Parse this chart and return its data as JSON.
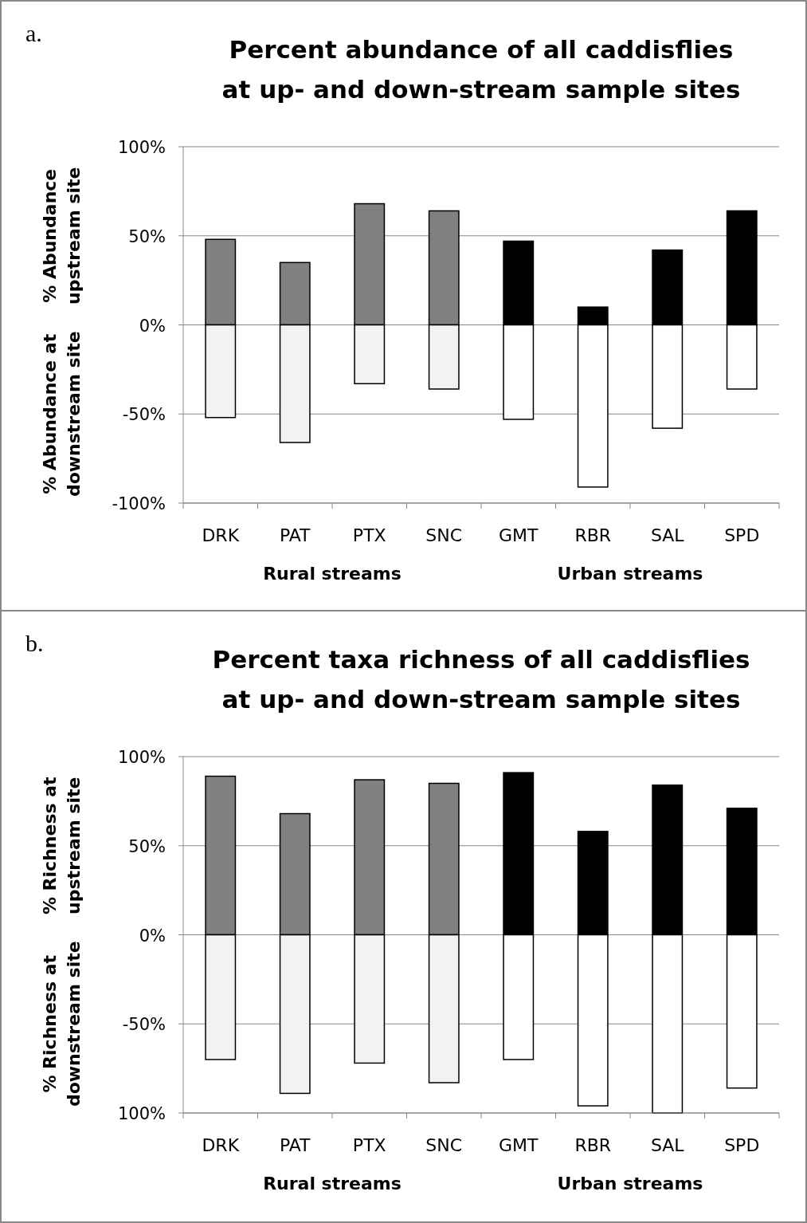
{
  "chart_data": [
    {
      "type": "bar",
      "stacked": true,
      "title": "Percent abundance of all caddisflies at up- and down-stream sample sites",
      "ylabel": "% Abundance\nupstream site",
      "categories": [
        "DRK",
        "PAT",
        "PTX",
        "SNC",
        "GMT",
        "RBR",
        "SAL",
        "SPD"
      ],
      "series": [
        {
          "values": [
            48,
            35,
            68,
            64,
            47,
            10,
            42,
            64
          ],
          "colors": [
            "#808080",
            "#808080",
            "#808080",
            "#808080",
            "#000000",
            "#000000",
            "#000000",
            "#000000"
          ]
        },
        {
          "values": [
            -52,
            -66,
            -33,
            -36,
            -53,
            -91,
            -58,
            -36
          ],
          "colors": [
            "#f2f2f2",
            "#f2f2f2",
            "#f2f2f2",
            "#f2f2f2",
            "#ffffff",
            "#ffffff",
            "#ffffff",
            "#ffffff"
          ]
        }
      ],
      "ylim": [
        -100,
        100
      ],
      "yticks": [
        {
          "value": -100,
          "label": "-100%"
        },
        {
          "value": -50,
          "label": "-50%"
        },
        {
          "value": 0,
          "label": "0%"
        },
        {
          "value": 50,
          "label": "50%"
        },
        {
          "value": 100,
          "label": "100%"
        }
      ],
      "grid": "y",
      "annotations": [
        "a.",
        "Rural streams",
        "Urban streams",
        "% Abundance at\ndownstream site"
      ]
    },
    {
      "type": "bar",
      "stacked": true,
      "title": "Percent taxa richness of all caddisflies at up- and down-stream sample sites",
      "ylabel": "% Richness at\nupstream site",
      "categories": [
        "DRK",
        "PAT",
        "PTX",
        "SNC",
        "GMT",
        "RBR",
        "SAL",
        "SPD"
      ],
      "series": [
        {
          "values": [
            89,
            68,
            87,
            85,
            91,
            58,
            84,
            71
          ],
          "colors": [
            "#808080",
            "#808080",
            "#808080",
            "#808080",
            "#000000",
            "#000000",
            "#000000",
            "#000000"
          ]
        },
        {
          "values": [
            -70,
            -89,
            -72,
            -83,
            -70,
            -96,
            -100,
            -86
          ],
          "colors": [
            "#f2f2f2",
            "#f2f2f2",
            "#f2f2f2",
            "#f2f2f2",
            "#ffffff",
            "#ffffff",
            "#ffffff",
            "#ffffff"
          ]
        }
      ],
      "ylim": [
        -100,
        100
      ],
      "yticks": [
        {
          "value": -100,
          "label": "100%"
        },
        {
          "value": -50,
          "label": "-50%"
        },
        {
          "value": 0,
          "label": "0%"
        },
        {
          "value": 50,
          "label": "50%"
        },
        {
          "value": 100,
          "label": "100%"
        }
      ],
      "grid": "y",
      "annotations": [
        "b.",
        "Rural streams",
        "Urban streams",
        "% Richness at\ndownstream site"
      ]
    }
  ]
}
